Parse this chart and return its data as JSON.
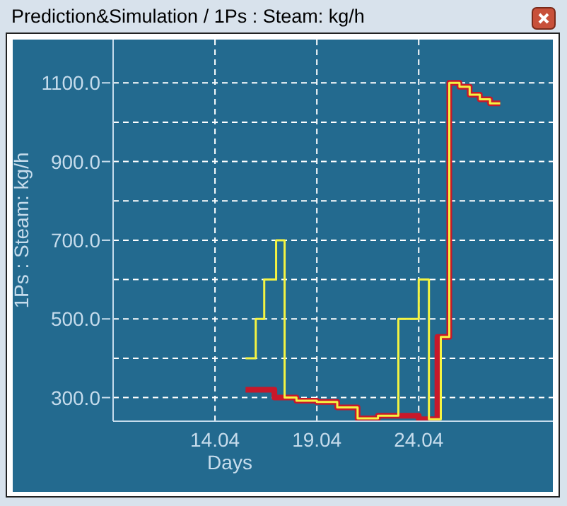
{
  "chart_data": {
    "type": "step",
    "title": "Prediction&Simulation / 1Ps : Steam: kg/h",
    "xlabel": "Days",
    "ylabel": "1Ps : Steam: kg/h",
    "series": [
      {
        "color": "#c8182a",
        "x": [
          "--04-15T12:00",
          "--04-16T22:00",
          "--04-17T10:00",
          "--04-18",
          "--04-19",
          "--04-20",
          "--04-21",
          "--04-22",
          "--04-24",
          "--04-24T22:00",
          "--04-25T12:00",
          "--04-26",
          "--04-26T12:00",
          "--04-27",
          "--04-27T12:00",
          "--04-28"
        ],
        "values": [
          320,
          300,
          300,
          292,
          289,
          275,
          247,
          254,
          245,
          454,
          1100,
          1090,
          1070,
          1058,
          1048,
          1048
        ]
      },
      {
        "color": "#f4f442",
        "x": [
          "--04-15T12:00",
          "--04-16",
          "--04-16T10:00",
          "--04-17",
          "--04-17T10:00",
          "--04-18",
          "--04-19",
          "--04-20",
          "--04-21",
          "--04-22",
          "--04-23",
          "--04-24",
          "--04-24T12:00",
          "--04-25T02:00",
          "--04-25T12:00",
          "--04-26",
          "--04-26T12:00",
          "--04-27",
          "--04-27T12:00",
          "--04-28"
        ],
        "values": [
          400,
          500,
          600,
          700,
          300,
          292,
          289,
          275,
          247,
          254,
          500,
          600,
          245,
          454,
          1100,
          1090,
          1070,
          1058,
          1048,
          1048
        ]
      }
    ],
    "xlim": [
      "--04-09",
      "--04-30T14:00"
    ],
    "xticks": [
      {
        "value": "--04-14",
        "label": "14.04"
      },
      {
        "value": "--04-19",
        "label": "19.04"
      },
      {
        "value": "--04-24",
        "label": "24.04"
      }
    ],
    "ylim": [
      240,
      1210
    ],
    "yticks": [
      {
        "value": 300,
        "label": "300.0"
      },
      {
        "value": 400,
        "label": null
      },
      {
        "value": 500,
        "label": "500.0"
      },
      {
        "value": 600,
        "label": null
      },
      {
        "value": 700,
        "label": "700.0"
      },
      {
        "value": 800,
        "label": null
      },
      {
        "value": 900,
        "label": "900.0"
      },
      {
        "value": 1000,
        "label": null
      },
      {
        "value": 1100,
        "label": "1100.0"
      }
    ],
    "grid": true,
    "legend": false
  }
}
